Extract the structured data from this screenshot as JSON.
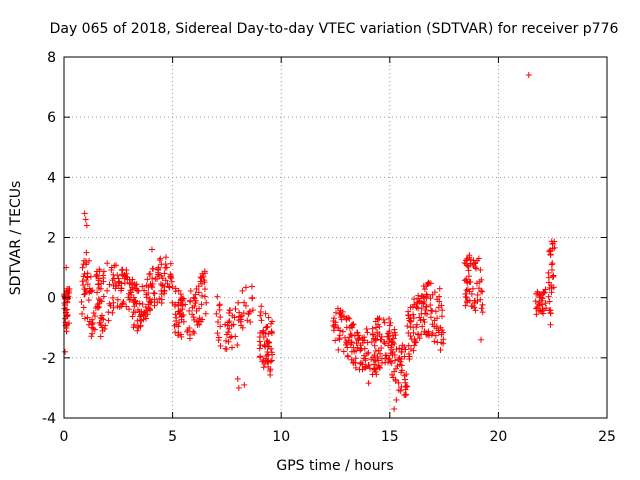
{
  "chart_data": {
    "type": "scatter",
    "title": "Day 065 of 2018, Sidereal Day-to-day VTEC variation (SDTVAR) for receiver p776",
    "xlabel": "GPS time / hours",
    "ylabel": "SDTVAR / TECUs",
    "xlim": [
      0,
      25
    ],
    "ylim": [
      -4,
      8
    ],
    "xticks": [
      0,
      5,
      10,
      15,
      20,
      25
    ],
    "yticks": [
      -4,
      -2,
      0,
      2,
      4,
      6,
      8
    ],
    "xtick_labels": [
      "0",
      "5",
      "10",
      "15",
      "20",
      "25"
    ],
    "ytick_labels": [
      "-4",
      "-2",
      "0",
      "2",
      "4",
      "6",
      "8"
    ],
    "grid": true,
    "marker": "+",
    "color": "#ff0000",
    "series": [
      {
        "name": "SDTVAR",
        "segments": [
          {
            "x0": 0.0,
            "x1": 0.25,
            "base": -0.6,
            "spread": 1.5,
            "n": 40
          },
          {
            "x0": 0.8,
            "x1": 2.0,
            "base": 0.3,
            "spread": 2.5,
            "n": 90
          },
          {
            "x0": 2.0,
            "x1": 3.5,
            "base": 0.0,
            "spread": 1.6,
            "n": 90
          },
          {
            "x0": 3.5,
            "x1": 5.0,
            "base": 0.2,
            "spread": 1.6,
            "n": 90
          },
          {
            "x0": 5.0,
            "x1": 6.6,
            "base": -0.3,
            "spread": 1.6,
            "n": 90
          },
          {
            "x0": 7.0,
            "x1": 8.7,
            "base": -0.7,
            "spread": 1.6,
            "n": 60
          },
          {
            "x0": 9.0,
            "x1": 9.6,
            "base": -1.2,
            "spread": 2.0,
            "n": 60
          },
          {
            "x0": 12.4,
            "x1": 14.0,
            "base": -1.4,
            "spread": 1.4,
            "n": 100
          },
          {
            "x0": 14.0,
            "x1": 15.8,
            "base": -1.9,
            "spread": 1.8,
            "n": 130
          },
          {
            "x0": 15.8,
            "x1": 17.5,
            "base": -0.8,
            "spread": 1.8,
            "n": 120
          },
          {
            "x0": 18.4,
            "x1": 19.3,
            "base": 0.1,
            "spread": 1.8,
            "n": 60
          },
          {
            "x0": 21.7,
            "x1": 22.2,
            "base": 0.0,
            "spread": 0.9,
            "n": 30
          },
          {
            "x0": 22.3,
            "x1": 22.6,
            "base": 0.4,
            "spread": 2.4,
            "n": 30
          }
        ],
        "points": [
          [
            0.05,
            -1.8
          ],
          [
            0.1,
            1.0
          ],
          [
            0.95,
            2.8
          ],
          [
            1.0,
            2.6
          ],
          [
            1.05,
            2.4
          ],
          [
            4.05,
            1.6
          ],
          [
            8.0,
            -2.7
          ],
          [
            8.05,
            -3.0
          ],
          [
            8.3,
            -2.9
          ],
          [
            9.4,
            -2.3
          ],
          [
            15.2,
            -3.7
          ],
          [
            15.3,
            -3.4
          ],
          [
            15.5,
            -3.1
          ],
          [
            21.4,
            7.4
          ],
          [
            22.5,
            1.8
          ],
          [
            22.4,
            -0.9
          ],
          [
            19.1,
            1.3
          ],
          [
            19.2,
            -1.4
          ],
          [
            17.3,
            0.3
          ]
        ]
      }
    ]
  }
}
